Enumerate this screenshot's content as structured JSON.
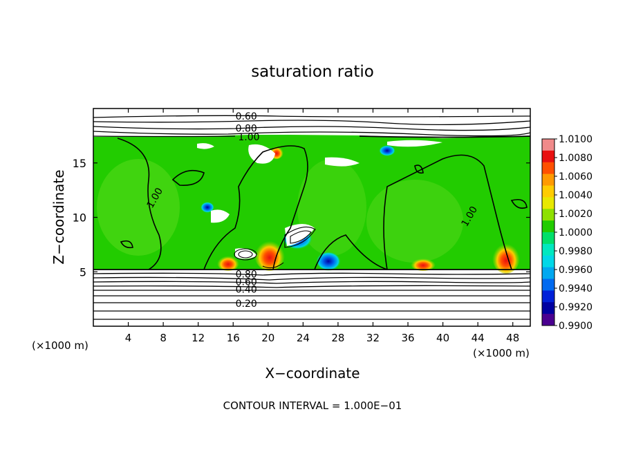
{
  "chart_data": {
    "type": "heatmap",
    "title": "saturation ratio",
    "xlabel": "X−coordinate",
    "ylabel": "Z−coordinate",
    "x_unit_left": "(×1000 m)",
    "x_unit_right": "(×1000 m)",
    "footer": "CONTOUR INTERVAL = 1.000E−01",
    "xlim": [
      0,
      50
    ],
    "ylim": [
      0,
      20
    ],
    "x_ticks": [
      4,
      8,
      12,
      16,
      20,
      24,
      28,
      32,
      36,
      40,
      44,
      48
    ],
    "x_tick_labels": [
      "4",
      "8",
      "12",
      "16",
      "20",
      "24",
      "28",
      "32",
      "36",
      "40",
      "44",
      "48"
    ],
    "y_ticks": [
      5,
      10,
      15
    ],
    "y_tick_labels": [
      "5",
      "10",
      "15"
    ],
    "colorbar": {
      "min": 0.99,
      "max": 1.01,
      "labels": [
        "1.0100",
        "1.0080",
        "1.0060",
        "1.0040",
        "1.0020",
        "1.0000",
        "0.9980",
        "0.9960",
        "0.9940",
        "0.9920",
        "0.9900"
      ],
      "colors": [
        "#f08a8a",
        "#e81010",
        "#ff5000",
        "#ff9a00",
        "#ffcc00",
        "#e8e800",
        "#8ee000",
        "#22cc00",
        "#00e06a",
        "#00e8c0",
        "#00d8e8",
        "#00a8f0",
        "#006af0",
        "#0020d8",
        "#0000a0",
        "#4a0090"
      ]
    },
    "contour_labels": [
      {
        "text": "0.60",
        "x": 17.5,
        "z": 19.3
      },
      {
        "text": "0.80",
        "x": 17.5,
        "z": 18.2
      },
      {
        "text": "1.00",
        "x": 17.8,
        "z": 17.4
      },
      {
        "text": "1.00",
        "x": 7.0,
        "z": 11.8
      },
      {
        "text": "1.00",
        "x": 43.0,
        "z": 10.1
      },
      {
        "text": "0.80",
        "x": 17.5,
        "z": 4.8
      },
      {
        "text": "0.60",
        "x": 17.5,
        "z": 4.1
      },
      {
        "text": "0.40",
        "x": 17.5,
        "z": 3.4
      },
      {
        "text": "0.20",
        "x": 17.5,
        "z": 2.1
      }
    ]
  }
}
